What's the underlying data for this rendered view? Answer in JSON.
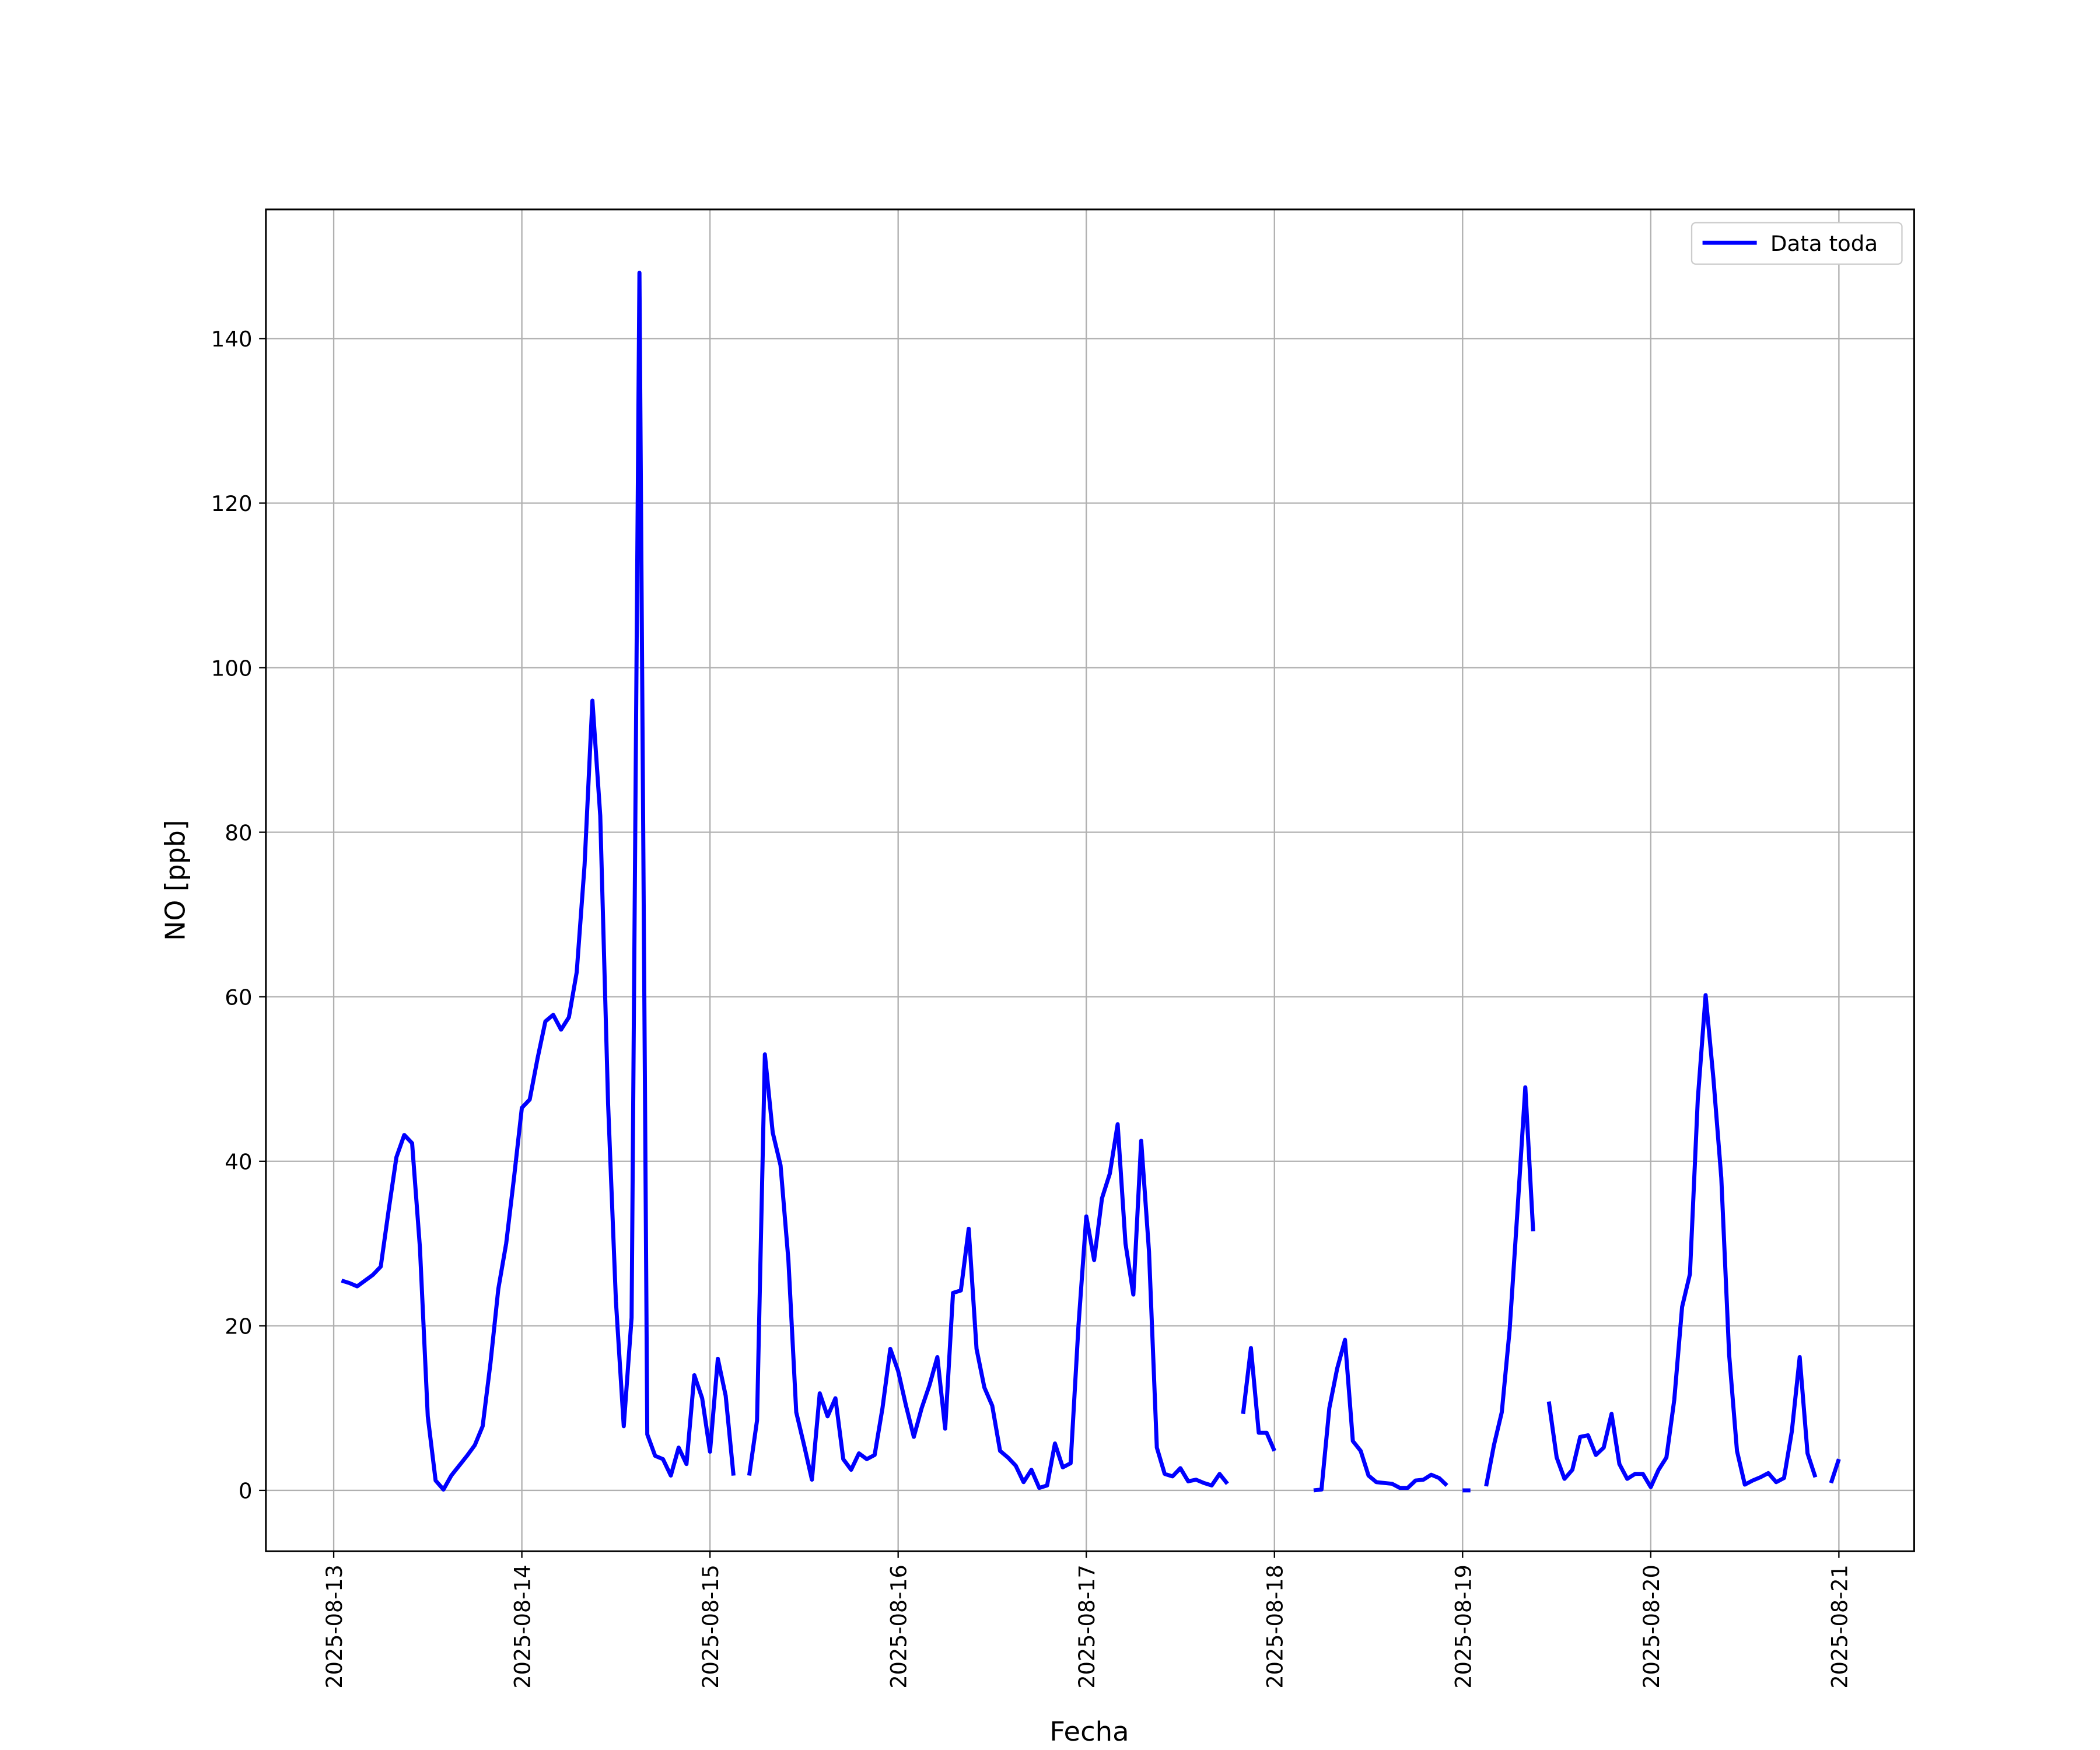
{
  "chart_data": {
    "type": "line",
    "xlabel": "Fecha",
    "ylabel": "NO [ppb]",
    "xlim": [
      "2025-08-12 15:21",
      "2025-08-21 09:36"
    ],
    "xticks": [
      "2025-08-13",
      "2025-08-14",
      "2025-08-15",
      "2025-08-16",
      "2025-08-17",
      "2025-08-18",
      "2025-08-19",
      "2025-08-20",
      "2025-08-21"
    ],
    "ylim": [
      -7.4,
      155.7
    ],
    "yticks": [
      0,
      20,
      40,
      60,
      80,
      100,
      120,
      140
    ],
    "grid": true,
    "legend": "upper right",
    "x": [
      "2025-08-13 01:00",
      "2025-08-13 02:00",
      "2025-08-13 03:00",
      "2025-08-13 04:00",
      "2025-08-13 05:00",
      "2025-08-13 06:00",
      "2025-08-13 07:00",
      "2025-08-13 08:00",
      "2025-08-13 09:00",
      "2025-08-13 10:00",
      "2025-08-13 11:00",
      "2025-08-13 12:00",
      "2025-08-13 13:00",
      "2025-08-13 14:00",
      "2025-08-13 15:00",
      "2025-08-13 16:00",
      "2025-08-13 17:00",
      "2025-08-13 18:00",
      "2025-08-13 19:00",
      "2025-08-13 20:00",
      "2025-08-13 21:00",
      "2025-08-13 22:00",
      "2025-08-13 23:00",
      "2025-08-14 00:00",
      "2025-08-14 01:00",
      "2025-08-14 02:00",
      "2025-08-14 03:00",
      "2025-08-14 04:00",
      "2025-08-14 05:00",
      "2025-08-14 06:00",
      "2025-08-14 07:00",
      "2025-08-14 08:00",
      "2025-08-14 09:00",
      "2025-08-14 10:00",
      "2025-08-14 11:00",
      "2025-08-14 12:00",
      "2025-08-14 13:00",
      "2025-08-14 14:00",
      "2025-08-14 15:00",
      "2025-08-14 16:00",
      "2025-08-14 17:00",
      "2025-08-14 18:00",
      "2025-08-14 19:00",
      "2025-08-14 20:00",
      "2025-08-14 21:00",
      "2025-08-14 22:00",
      "2025-08-14 23:00",
      "2025-08-15 00:00",
      "2025-08-15 01:00",
      "2025-08-15 02:00",
      "2025-08-15 03:00",
      "2025-08-15 04:00",
      "2025-08-15 05:00",
      "2025-08-15 06:00",
      "2025-08-15 07:00",
      "2025-08-15 08:00",
      "2025-08-15 09:00",
      "2025-08-15 10:00",
      "2025-08-15 11:00",
      "2025-08-15 12:00",
      "2025-08-15 13:00",
      "2025-08-15 14:00",
      "2025-08-15 15:00",
      "2025-08-15 16:00",
      "2025-08-15 17:00",
      "2025-08-15 18:00",
      "2025-08-15 19:00",
      "2025-08-15 20:00",
      "2025-08-15 21:00",
      "2025-08-15 22:00",
      "2025-08-15 23:00",
      "2025-08-16 00:00",
      "2025-08-16 01:00",
      "2025-08-16 02:00",
      "2025-08-16 03:00",
      "2025-08-16 04:00",
      "2025-08-16 05:00",
      "2025-08-16 06:00",
      "2025-08-16 07:00",
      "2025-08-16 08:00",
      "2025-08-16 09:00",
      "2025-08-16 10:00",
      "2025-08-16 11:00",
      "2025-08-16 12:00",
      "2025-08-16 13:00",
      "2025-08-16 14:00",
      "2025-08-16 15:00",
      "2025-08-16 16:00",
      "2025-08-16 17:00",
      "2025-08-16 18:00",
      "2025-08-16 19:00",
      "2025-08-16 20:00",
      "2025-08-16 21:00",
      "2025-08-16 22:00",
      "2025-08-16 23:00",
      "2025-08-17 00:00",
      "2025-08-17 01:00",
      "2025-08-17 02:00",
      "2025-08-17 03:00",
      "2025-08-17 04:00",
      "2025-08-17 05:00",
      "2025-08-17 06:00",
      "2025-08-17 07:00",
      "2025-08-17 08:00",
      "2025-08-17 09:00",
      "2025-08-17 10:00",
      "2025-08-17 11:00",
      "2025-08-17 12:00",
      "2025-08-17 13:00",
      "2025-08-17 14:00",
      "2025-08-17 15:00",
      "2025-08-17 16:00",
      "2025-08-17 17:00",
      "2025-08-17 18:00",
      "2025-08-17 19:00",
      "2025-08-17 20:00",
      "2025-08-17 21:00",
      "2025-08-17 22:00",
      "2025-08-17 23:00",
      "2025-08-18 00:00",
      "2025-08-18 01:00",
      "2025-08-18 02:00",
      "2025-08-18 03:00",
      "2025-08-18 04:00",
      "2025-08-18 05:00",
      "2025-08-18 06:00",
      "2025-08-18 07:00",
      "2025-08-18 08:00",
      "2025-08-18 09:00",
      "2025-08-18 10:00",
      "2025-08-18 11:00",
      "2025-08-18 12:00",
      "2025-08-18 13:00",
      "2025-08-18 14:00",
      "2025-08-18 15:00",
      "2025-08-18 16:00",
      "2025-08-18 17:00",
      "2025-08-18 18:00",
      "2025-08-18 19:00",
      "2025-08-18 20:00",
      "2025-08-18 21:00",
      "2025-08-18 22:00",
      "2025-08-18 23:00",
      "2025-08-19 00:00",
      "2025-08-19 01:00",
      "2025-08-19 02:00",
      "2025-08-19 03:00",
      "2025-08-19 04:00",
      "2025-08-19 05:00",
      "2025-08-19 06:00",
      "2025-08-19 07:00",
      "2025-08-19 08:00",
      "2025-08-19 09:00",
      "2025-08-19 10:00",
      "2025-08-19 11:00",
      "2025-08-19 12:00",
      "2025-08-19 13:00",
      "2025-08-19 14:00",
      "2025-08-19 15:00",
      "2025-08-19 16:00",
      "2025-08-19 17:00",
      "2025-08-19 18:00",
      "2025-08-19 19:00",
      "2025-08-19 20:00",
      "2025-08-19 21:00",
      "2025-08-19 22:00",
      "2025-08-19 23:00",
      "2025-08-20 00:00",
      "2025-08-20 01:00",
      "2025-08-20 02:00",
      "2025-08-20 03:00",
      "2025-08-20 04:00",
      "2025-08-20 05:00",
      "2025-08-20 06:00",
      "2025-08-20 07:00",
      "2025-08-20 08:00",
      "2025-08-20 09:00",
      "2025-08-20 10:00",
      "2025-08-20 11:00",
      "2025-08-20 12:00",
      "2025-08-20 13:00",
      "2025-08-20 14:00",
      "2025-08-20 15:00",
      "2025-08-20 16:00",
      "2025-08-20 17:00",
      "2025-08-20 18:00",
      "2025-08-20 19:00",
      "2025-08-20 20:00",
      "2025-08-20 21:00",
      "2025-08-20 22:00",
      "2025-08-20 23:00",
      "2025-08-21 00:00"
    ],
    "series": [
      {
        "name": "Data toda",
        "color": "#0000ff",
        "values": [
          25.5,
          25.2,
          24.8,
          25.5,
          26.2,
          27.2,
          34,
          40.5,
          43.2,
          42.2,
          29.5,
          9,
          1.2,
          0.1,
          1.8,
          3,
          4.2,
          5.5,
          7.8,
          15.5,
          24.5,
          30,
          38,
          46.5,
          47.5,
          52.5,
          57,
          57.8,
          56,
          57.5,
          63,
          76,
          96,
          82,
          47,
          23,
          7.8,
          21,
          148,
          6.8,
          4.2,
          3.8,
          1.8,
          5.2,
          3.2,
          14,
          11.2,
          4.7,
          16,
          11.5,
          1.8,
          null,
          1.8,
          8.5,
          53,
          43.5,
          39.5,
          28,
          9.5,
          5.5,
          1.3,
          11.8,
          9,
          11.2,
          3.8,
          2.5,
          4.5,
          3.8,
          4.3,
          10,
          17.2,
          14.5,
          10.3,
          6.5,
          10,
          12.8,
          16.2,
          7.5,
          24,
          24.3,
          31.8,
          17.2,
          12.5,
          10.3,
          4.8,
          4,
          3,
          1,
          2.5,
          0.3,
          0.6,
          5.7,
          2.8,
          3.3,
          20,
          33.3,
          28,
          35.5,
          38.5,
          44.5,
          30,
          23.8,
          42.5,
          29,
          5.2,
          2,
          1.7,
          2.7,
          1.1,
          1.3,
          0.9,
          0.6,
          2,
          0.8,
          null,
          9.3,
          17.3,
          7,
          7,
          4.8,
          null,
          null,
          null,
          null,
          0,
          0.1,
          10,
          14.8,
          18.3,
          6,
          4.8,
          1.8,
          1,
          0.9,
          0.8,
          0.3,
          0.3,
          1.2,
          1.3,
          1.9,
          1.5,
          0.6,
          null,
          0,
          0,
          null,
          0.5,
          5.5,
          9.5,
          19.5,
          34,
          49,
          31.5,
          null,
          10.8,
          4,
          1.4,
          2.5,
          6.5,
          6.7,
          4.3,
          5.2,
          9.3,
          3.2,
          1.4,
          2,
          2,
          0.4,
          2.5,
          4,
          11,
          22.3,
          26.3,
          47.5,
          60.2,
          50,
          38,
          16.5,
          4.8,
          0.7,
          1.2,
          1.6,
          2.1,
          1,
          1.5,
          7.2,
          16.2,
          4.5,
          1.6,
          null,
          0.9,
          3.8
        ]
      }
    ]
  }
}
